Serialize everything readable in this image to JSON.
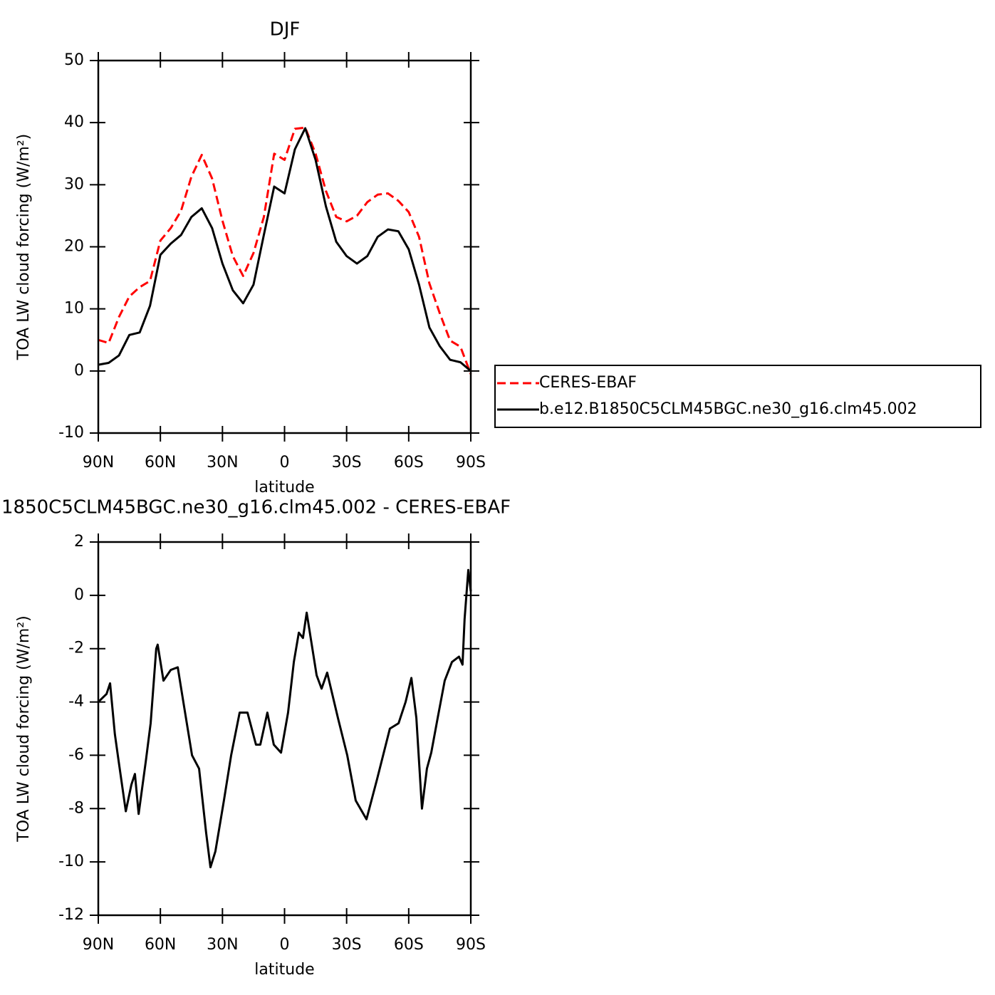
{
  "chart_data": [
    {
      "type": "line",
      "title": "DJF",
      "xlabel": "latitude",
      "ylabel": "TOA LW cloud forcing (W/m²)",
      "xlim": [
        90,
        -90
      ],
      "xticks": [
        {
          "value": 90,
          "label": "90N"
        },
        {
          "value": 60,
          "label": "60N"
        },
        {
          "value": 30,
          "label": "30N"
        },
        0,
        {
          "value": -30,
          "label": "30S"
        },
        {
          "value": -60,
          "label": "60S"
        },
        {
          "value": -90,
          "label": "90S"
        }
      ],
      "ylim": [
        -10,
        50
      ],
      "yticks": [
        -10,
        0,
        10,
        20,
        30,
        40,
        50
      ],
      "x": [
        90,
        85,
        80,
        75,
        70,
        65,
        60,
        55,
        50,
        45,
        40,
        35,
        30,
        25,
        20,
        15,
        10,
        5,
        0,
        -5,
        -10,
        -15,
        -20,
        -25,
        -30,
        -35,
        -40,
        -45,
        -50,
        -55,
        -60,
        -65,
        -70,
        -75,
        -80,
        -85,
        -90
      ],
      "legend": "right",
      "series": [
        {
          "name": "CERES-EBAF",
          "color": "#ff0000",
          "line_style": "dashed",
          "values": [
            5,
            4.5,
            8.7,
            12,
            13.5,
            14.5,
            21,
            23,
            25.8,
            31.3,
            34.8,
            31,
            24.2,
            18.5,
            15.3,
            19,
            24.8,
            35,
            34,
            39,
            39.2,
            35,
            29,
            24.8,
            24.1,
            25,
            27.2,
            28.4,
            28.6,
            27.4,
            25.6,
            21.6,
            14.1,
            9.3,
            4.9,
            3.9,
            -0.5
          ]
        },
        {
          "name": "b.e12.B1850C5CLM45BGC.ne30_g16.clm45.002",
          "color": "#000000",
          "line_style": "solid",
          "values": [
            1,
            1.3,
            2.5,
            5.8,
            6.2,
            10.5,
            18.7,
            20.5,
            21.9,
            24.8,
            26.2,
            23,
            17.3,
            13,
            10.9,
            13.9,
            21.9,
            29.7,
            28.6,
            35.7,
            39.1,
            34,
            26.5,
            20.8,
            18.5,
            17.3,
            18.5,
            21.6,
            22.8,
            22.5,
            19.6,
            13.9,
            7,
            4,
            1.8,
            1.4,
            0
          ]
        }
      ]
    },
    {
      "type": "line",
      "title": "1850C5CLM45BGC.ne30_g16.clm45.002 - CERES-EBAF",
      "xlabel": "latitude",
      "ylabel": "TOA LW cloud forcing (W/m²)",
      "xlim": [
        90,
        -90
      ],
      "xticks": [
        {
          "value": 90,
          "label": "90N"
        },
        {
          "value": 60,
          "label": "60N"
        },
        {
          "value": 30,
          "label": "30N"
        },
        0,
        {
          "value": -30,
          "label": "30S"
        },
        {
          "value": -60,
          "label": "60S"
        },
        {
          "value": -90,
          "label": "90S"
        }
      ],
      "ylim": [
        -12,
        2
      ],
      "yticks": [
        -12,
        -10,
        -8,
        -6,
        -4,
        -2,
        0,
        2
      ],
      "series": [
        {
          "color": "#000000",
          "line_style": "solid",
          "x": [
            90,
            86,
            84.3,
            82,
            80.2,
            76.7,
            74,
            72.3,
            70.5,
            67,
            64.7,
            62,
            61.3,
            58.5,
            55,
            51.6,
            48.9,
            44.7,
            41.3,
            37.9,
            35.8,
            33.4,
            29.3,
            25.8,
            21.7,
            17.9,
            13.8,
            11.7,
            8.3,
            5.2,
            1.7,
            -1.7,
            -4.5,
            -6.9,
            -8.9,
            -10.7,
            -15.5,
            -17.9,
            -20.6,
            -25.8,
            -30.3,
            -34.4,
            -39.6,
            -44.7,
            -50.9,
            -55.1,
            -58.5,
            -61.3,
            -63.7,
            -66.4,
            -68.8,
            -70.9,
            -74,
            -77.4,
            -80.9,
            -84.3,
            -86,
            -87,
            -88.8,
            -90
          ],
          "values": [
            -4.0,
            -3.7,
            -3.3,
            -5.2,
            -6.2,
            -8.1,
            -7.1,
            -6.7,
            -8.2,
            -6.2,
            -4.8,
            -2.0,
            -1.85,
            -3.2,
            -2.8,
            -2.7,
            -4.0,
            -6.0,
            -6.5,
            -8.9,
            -10.2,
            -9.6,
            -7.7,
            -6.0,
            -4.4,
            -4.4,
            -5.6,
            -5.6,
            -4.4,
            -5.6,
            -5.9,
            -4.4,
            -2.5,
            -1.4,
            -1.6,
            -0.65,
            -3.0,
            -3.5,
            -2.9,
            -4.6,
            -6.0,
            -7.7,
            -8.4,
            -6.9,
            -5.0,
            -4.8,
            -4.0,
            -3.1,
            -4.6,
            -8.0,
            -6.5,
            -5.9,
            -4.6,
            -3.2,
            -2.5,
            -2.3,
            -2.6,
            -0.9,
            0.95,
            0.15
          ]
        }
      ]
    }
  ]
}
